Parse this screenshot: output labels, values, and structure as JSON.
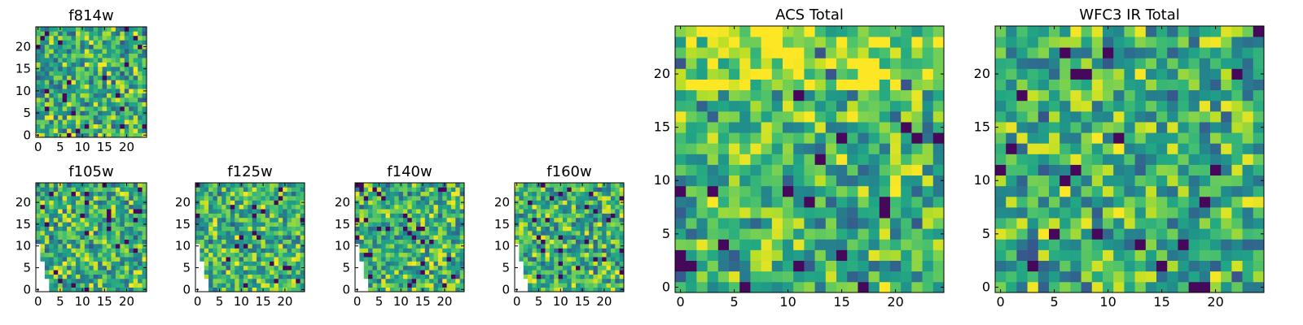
{
  "chart_data": [
    {
      "id": "f814w",
      "type": "heatmap",
      "title": "f814w",
      "grid_size": 25,
      "xlim": [
        -0.5,
        24.5
      ],
      "ylim": [
        -0.5,
        24.5
      ],
      "xticks": [
        "0",
        "5",
        "10",
        "15",
        "20"
      ],
      "yticks": [
        "0",
        "5",
        "10",
        "15",
        "20"
      ],
      "colormap": "viridis",
      "masked_region": "none"
    },
    {
      "id": "f105w",
      "type": "heatmap",
      "title": "f105w",
      "grid_size": 25,
      "xlim": [
        -0.5,
        24.5
      ],
      "ylim": [
        -0.5,
        24.5
      ],
      "xticks": [
        "0",
        "5",
        "10",
        "15",
        "20"
      ],
      "yticks": [
        "0",
        "5",
        "10",
        "15",
        "20"
      ],
      "colormap": "viridis",
      "masked_region": "lower-left"
    },
    {
      "id": "f125w",
      "type": "heatmap",
      "title": "f125w",
      "grid_size": 25,
      "xlim": [
        -0.5,
        24.5
      ],
      "ylim": [
        -0.5,
        24.5
      ],
      "xticks": [
        "0",
        "5",
        "10",
        "15",
        "20"
      ],
      "yticks": [
        "0",
        "5",
        "10",
        "15",
        "20"
      ],
      "colormap": "viridis",
      "masked_region": "lower-left"
    },
    {
      "id": "f140w",
      "type": "heatmap",
      "title": "f140w",
      "grid_size": 25,
      "xlim": [
        -0.5,
        24.5
      ],
      "ylim": [
        -0.5,
        24.5
      ],
      "xticks": [
        "0",
        "5",
        "10",
        "15",
        "20"
      ],
      "yticks": [
        "0",
        "5",
        "10",
        "15",
        "20"
      ],
      "colormap": "viridis",
      "masked_region": "lower-left"
    },
    {
      "id": "f160w",
      "type": "heatmap",
      "title": "f160w",
      "grid_size": 25,
      "xlim": [
        -0.5,
        24.5
      ],
      "ylim": [
        -0.5,
        24.5
      ],
      "xticks": [
        "0",
        "5",
        "10",
        "15",
        "20"
      ],
      "yticks": [
        "0",
        "5",
        "10",
        "15",
        "20"
      ],
      "colormap": "viridis",
      "masked_region": "lower-left"
    },
    {
      "id": "acs-total",
      "type": "heatmap",
      "title": "ACS Total",
      "grid_size": 25,
      "xlim": [
        -0.5,
        24.5
      ],
      "ylim": [
        -0.5,
        24.5
      ],
      "xticks": [
        "0",
        "5",
        "10",
        "15",
        "20"
      ],
      "yticks": [
        "0",
        "5",
        "10",
        "15",
        "20"
      ],
      "colormap": "viridis",
      "masked_region": "none"
    },
    {
      "id": "wfc3-ir-total",
      "type": "heatmap",
      "title": "WFC3 IR Total",
      "grid_size": 25,
      "xlim": [
        -0.5,
        24.5
      ],
      "ylim": [
        -0.5,
        24.5
      ],
      "xticks": [
        "0",
        "5",
        "10",
        "15",
        "20"
      ],
      "yticks": [
        "0",
        "5",
        "10",
        "15",
        "20"
      ],
      "colormap": "viridis",
      "masked_region": "none"
    }
  ],
  "colors": {
    "viridis": [
      "#440154",
      "#3b528b",
      "#21918c",
      "#5ec962",
      "#fde725"
    ],
    "axes_edge": "#000000",
    "background": "#ffffff"
  }
}
